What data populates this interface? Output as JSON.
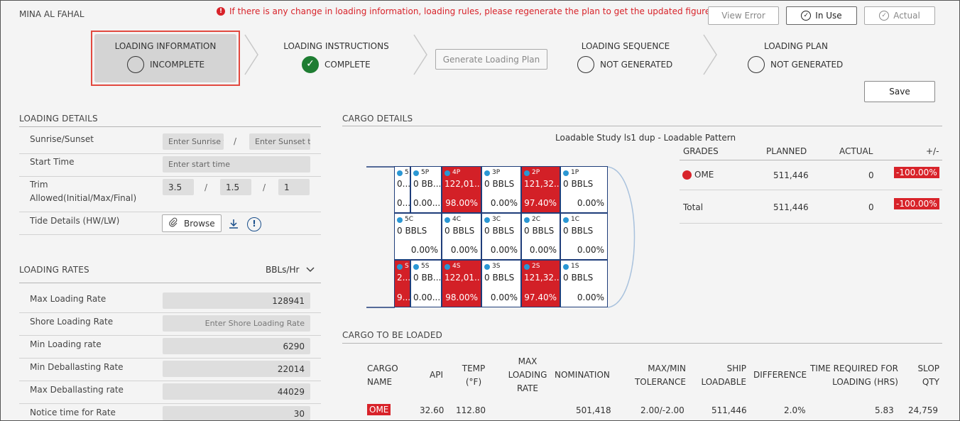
{
  "port_name": "MINA AL FAHAL",
  "warning_text": "If there is any change in loading information, loading rules, please regenerate the plan to get the updated figures.",
  "top_buttons": {
    "view_error": "View Error",
    "in_use": "In Use",
    "actual": "Actual"
  },
  "steps": [
    {
      "title": "LOADING INFORMATION",
      "status": "INCOMPLETE"
    },
    {
      "title": "LOADING INSTRUCTIONS",
      "status": "COMPLETE"
    },
    {
      "title": "LOADING SEQUENCE",
      "status": "NOT GENERATED"
    },
    {
      "title": "LOADING PLAN",
      "status": "NOT GENERATED"
    }
  ],
  "generate_button": "Generate Loading Plan",
  "save_button": "Save",
  "loading_details": {
    "title": "LOADING DETAILS",
    "sunrise_label": "Sunrise/Sunset",
    "sunrise_placeholder": "Enter Sunrise t",
    "sunset_placeholder": "Enter Sunset t",
    "start_time_label": "Start Time",
    "start_time_placeholder": "Enter start time",
    "trim_label": "Trim Allowed(Initial/Max/Final)",
    "trim_initial": "3.5",
    "trim_max": "1.5",
    "trim_final": "1",
    "tide_label": "Tide Details (HW/LW)",
    "browse_label": "Browse",
    "slash": "/"
  },
  "loading_rates": {
    "title": "LOADING RATES",
    "unit": "BBLs/Hr",
    "rows": [
      {
        "label": "Max Loading Rate",
        "value": "128941",
        "placeholder": ""
      },
      {
        "label": "Shore Loading Rate",
        "value": "",
        "placeholder": "Enter Shore Loading Rate"
      },
      {
        "label": "Min Loading rate",
        "value": "6290",
        "placeholder": ""
      },
      {
        "label": "Min Deballasting Rate",
        "value": "22014",
        "placeholder": ""
      },
      {
        "label": "Max Deballasting rate",
        "value": "44029",
        "placeholder": ""
      },
      {
        "label": "Notice time for Rate",
        "value": "30",
        "placeholder": ""
      }
    ]
  },
  "cargo_details": {
    "title": "CARGO DETAILS",
    "study_title": "Loadable Study ls1 dup - Loadable Pattern",
    "tanks": {
      "port": [
        {
          "id": "5",
          "qty": "0...",
          "pct": "0...",
          "red": false
        },
        {
          "id": "5P",
          "qty": "0 BB...",
          "pct": "0.00...",
          "red": false
        },
        {
          "id": "4P",
          "qty": "122,01...",
          "pct": "98.00%",
          "red": true
        },
        {
          "id": "3P",
          "qty": "0 BBLS",
          "pct": "0.00%",
          "red": false
        },
        {
          "id": "2P",
          "qty": "121,32...",
          "pct": "97.40%",
          "red": true
        },
        {
          "id": "1P",
          "qty": "0 BBLS",
          "pct": "0.00%",
          "red": false
        }
      ],
      "center": [
        {
          "id": "5C",
          "qty": "0 BBLS",
          "pct": "0.00%",
          "red": false
        },
        {
          "id": "4C",
          "qty": "0 BBLS",
          "pct": "0.00%",
          "red": false
        },
        {
          "id": "3C",
          "qty": "0 BBLS",
          "pct": "0.00%",
          "red": false
        },
        {
          "id": "2C",
          "qty": "0 BBLS",
          "pct": "0.00%",
          "red": false
        },
        {
          "id": "1C",
          "qty": "0 BBLS",
          "pct": "0.00%",
          "red": false
        }
      ],
      "starboard": [
        {
          "id": "S",
          "qty": "2...",
          "pct": "9...",
          "red": true
        },
        {
          "id": "5S",
          "qty": "0 BB...",
          "pct": "0.00...",
          "red": false
        },
        {
          "id": "4S",
          "qty": "122,01...",
          "pct": "98.00%",
          "red": true
        },
        {
          "id": "3S",
          "qty": "0 BBLS",
          "pct": "0.00%",
          "red": false
        },
        {
          "id": "2S",
          "qty": "121,32...",
          "pct": "97.40%",
          "red": true
        },
        {
          "id": "1S",
          "qty": "0 BBLS",
          "pct": "0.00%",
          "red": false
        }
      ]
    },
    "grades": {
      "headers": {
        "grades": "GRADES",
        "planned": "PLANNED",
        "actual": "ACTUAL",
        "diff": "+/-"
      },
      "rows": [
        {
          "name": "OME",
          "planned": "511,446",
          "actual": "0",
          "diff": "-100.00%",
          "color": "#d8232a"
        },
        {
          "name": "Total",
          "planned": "511,446",
          "actual": "0",
          "diff": "-100.00%"
        }
      ]
    }
  },
  "cargo_to_be_loaded": {
    "title": "CARGO TO BE LOADED",
    "headers": {
      "cargo_name": "CARGO NAME",
      "api": "API",
      "temp": "TEMP (°F)",
      "max_loading_rate": "MAX LOADING RATE",
      "nomination": "NOMINATION",
      "tolerance": "MAX/MIN TOLERANCE",
      "ship_loadable": "SHIP LOADABLE",
      "difference": "DIFFERENCE",
      "time_required": "TIME REQUIRED FOR LOADING (HRS)",
      "slop_qty": "SLOP QTY"
    },
    "row": {
      "cargo_name": "OME",
      "api": "32.60",
      "temp": "112.80",
      "max_loading_rate": "",
      "nomination": "501,418",
      "tolerance": "2.00/-2.00",
      "ship_loadable": "511,446",
      "difference": "2.0%",
      "time_required": "5.83",
      "slop_qty": "24,759"
    }
  }
}
